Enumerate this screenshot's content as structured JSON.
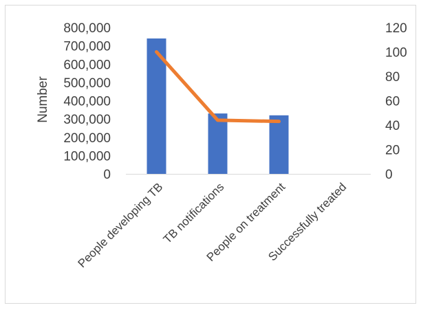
{
  "chart_data": {
    "type": "bar",
    "categories": [
      "People developing TB",
      "TB notifications",
      "People on treatment",
      "Successfully treated"
    ],
    "series": [
      {
        "values": [
          740000,
          330000,
          320000,
          null
        ],
        "color": "#4472C4",
        "axis": "primary",
        "render": "bar"
      },
      {
        "values": [
          100,
          44,
          43,
          null
        ],
        "color": "#ED7D31",
        "axis": "secondary",
        "render": "line"
      }
    ],
    "ylabel": "Number",
    "ylim": [
      0,
      800000
    ],
    "yticks": [
      "0",
      "100,000",
      "200,000",
      "300,000",
      "400,000",
      "500,000",
      "600,000",
      "700,000",
      "800,000"
    ],
    "y2lim": [
      0,
      120
    ],
    "y2ticks": [
      "0",
      "20",
      "40",
      "60",
      "80",
      "100",
      "120"
    ],
    "grid": false,
    "legend": "none"
  }
}
